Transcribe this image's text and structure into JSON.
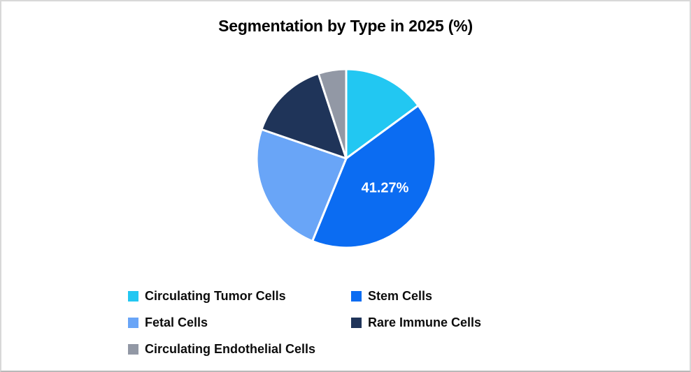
{
  "chart_data": {
    "type": "pie",
    "title": "Segmentation by Type in 2025 (%)",
    "start_angle_deg": 0,
    "direction": "clockwise",
    "legend_position": "bottom",
    "background_color": "#FFFFFF",
    "data_label_color": "#FFFFFF",
    "slice_separator_color": "#FFFFFF",
    "slices": [
      {
        "label": "Circulating Tumor Cells",
        "value": 14.9,
        "color": "#22C7F2",
        "data_label": ""
      },
      {
        "label": "Stem Cells",
        "value": 41.27,
        "color": "#0B6CF2",
        "data_label": "41.27%"
      },
      {
        "label": "Fetal Cells",
        "value": 24.1,
        "color": "#69A5F7",
        "data_label": ""
      },
      {
        "label": "Rare Immune Cells",
        "value": 14.7,
        "color": "#1F3459",
        "data_label": ""
      },
      {
        "label": "Circulating Endothelial Cells",
        "value": 5.03,
        "color": "#9298A5",
        "data_label": ""
      }
    ]
  }
}
